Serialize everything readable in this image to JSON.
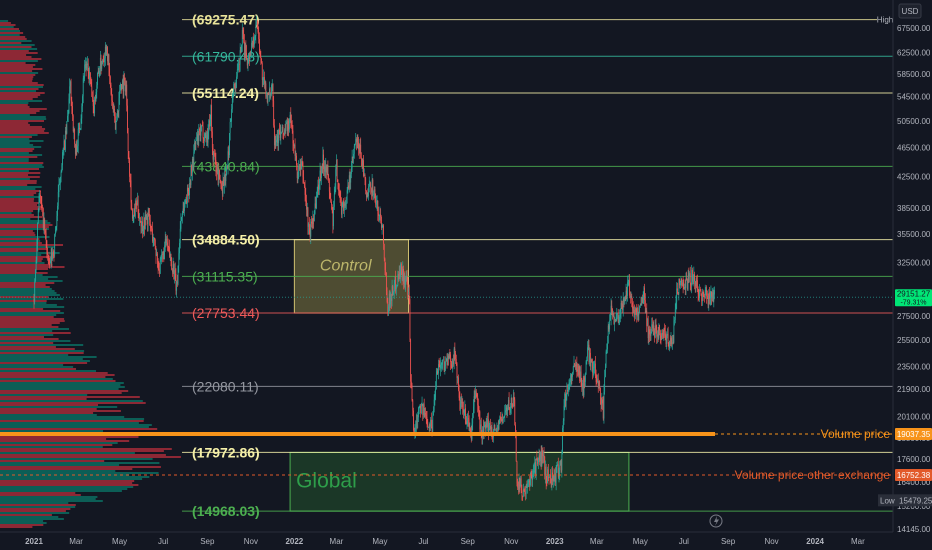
{
  "chart_data": {
    "type": "candlestick",
    "currency": "USD",
    "y_scale": "log",
    "ylim": [
      14200,
      70500
    ],
    "xlim": [
      "2021-01-01",
      "2024-04-01"
    ],
    "y_ticks": [
      "67500.00",
      "62500.00",
      "58500.00",
      "54500.00",
      "50500.00",
      "46500.00",
      "42500.00",
      "38500.00",
      "35500.00",
      "32500.00",
      "29500.00",
      "27500.00",
      "25500.00",
      "23500.00",
      "21900.00",
      "20100.00",
      "18800.00",
      "17600.00",
      "16400.00",
      "15200.00",
      "14145.00"
    ],
    "x_ticks": [
      {
        "date": "2021-01-01",
        "label": "2021",
        "bold": true
      },
      {
        "date": "2021-03-01",
        "label": "Mar"
      },
      {
        "date": "2021-05-01",
        "label": "May"
      },
      {
        "date": "2021-07-01",
        "label": "Jul"
      },
      {
        "date": "2021-09-01",
        "label": "Sep"
      },
      {
        "date": "2021-11-01",
        "label": "Nov"
      },
      {
        "date": "2022-01-01",
        "label": "2022",
        "bold": true
      },
      {
        "date": "2022-03-01",
        "label": "Mar"
      },
      {
        "date": "2022-05-01",
        "label": "May"
      },
      {
        "date": "2022-07-01",
        "label": "Jul"
      },
      {
        "date": "2022-09-01",
        "label": "Sep"
      },
      {
        "date": "2022-11-01",
        "label": "Nov"
      },
      {
        "date": "2023-01-01",
        "label": "2023",
        "bold": true
      },
      {
        "date": "2023-03-01",
        "label": "Mar"
      },
      {
        "date": "2023-05-01",
        "label": "May"
      },
      {
        "date": "2023-07-01",
        "label": "Jul"
      },
      {
        "date": "2023-09-01",
        "label": "Sep"
      },
      {
        "date": "2023-11-01",
        "label": "Nov"
      },
      {
        "date": "2024-01-01",
        "label": "2024",
        "bold": true
      },
      {
        "date": "2024-03-01",
        "label": "Mar"
      }
    ],
    "levels": [
      {
        "value": 69275.47,
        "label": "(69275.47)",
        "color": "#e8e39a",
        "bold": true
      },
      {
        "value": 61790.43,
        "label": "(61790.43)",
        "color": "#35b89c",
        "bold": false
      },
      {
        "value": 55114.24,
        "label": "(55114.24)",
        "color": "#f5f0a8",
        "bold": true
      },
      {
        "value": 43840.84,
        "label": "(43840.84)",
        "color": "#4caf50",
        "bold": false
      },
      {
        "value": 34884.5,
        "label": "(34884.50)",
        "color": "#f5f0a8",
        "bold": true
      },
      {
        "value": 31115.35,
        "label": "(31115.35)",
        "color": "#4caf50",
        "bold": false
      },
      {
        "value": 27753.44,
        "label": "(27753.44)",
        "color": "#f05a5a",
        "bold": false
      },
      {
        "value": 22080.11,
        "label": "(22080.11)",
        "color": "#9598a1",
        "bold": false
      },
      {
        "value": 17972.86,
        "label": "(17972.86)",
        "color": "#f5f0a8",
        "bold": true
      },
      {
        "value": 14968.03,
        "label": "(14968.03)",
        "color": "#4caf50",
        "bold": true
      }
    ],
    "zones": [
      {
        "label": "Control",
        "from": "2022-01-01",
        "to": "2022-06-10",
        "low": 27753.44,
        "high": 34884.5,
        "fill": "rgba(214,200,90,0.30)",
        "stroke": "#cfc070",
        "text_color": "#bdb76b"
      },
      {
        "label": "Global",
        "from": "2021-12-26",
        "to": "2023-04-15",
        "low": 14968.03,
        "high": 17972.86,
        "fill": "rgba(46,125,50,0.32)",
        "stroke": "#4caf50",
        "text_color": "#2e9e4a"
      }
    ],
    "high_marker": {
      "label": "High",
      "value": 69275.47
    },
    "low_marker": {
      "label": "Low",
      "value": 15479.25
    },
    "current_price": {
      "value": "29151.27",
      "change": "-79.31%",
      "value_num": 29151.27
    },
    "volume_lines": [
      {
        "label": "Volume price",
        "value": "19037.35",
        "value_num": 19037.35,
        "color": "#f7931a"
      },
      {
        "label": "Volume price other exchange",
        "value": "16752.38",
        "value_num": 16752.38,
        "color": "#e25a2a"
      }
    ],
    "price_path": [
      [
        "2021-01-01",
        29000
      ],
      [
        "2021-01-08",
        40500
      ],
      [
        "2021-01-15",
        36500
      ],
      [
        "2021-01-22",
        32000
      ],
      [
        "2021-01-29",
        34000
      ],
      [
        "2021-02-08",
        44000
      ],
      [
        "2021-02-15",
        48500
      ],
      [
        "2021-02-21",
        56500
      ],
      [
        "2021-02-28",
        45500
      ],
      [
        "2021-03-07",
        50500
      ],
      [
        "2021-03-13",
        60500
      ],
      [
        "2021-03-20",
        58000
      ],
      [
        "2021-03-25",
        52000
      ],
      [
        "2021-04-01",
        58800
      ],
      [
        "2021-04-13",
        64000
      ],
      [
        "2021-04-18",
        56000
      ],
      [
        "2021-04-25",
        49500
      ],
      [
        "2021-05-03",
        57000
      ],
      [
        "2021-05-10",
        56500
      ],
      [
        "2021-05-12",
        49000
      ],
      [
        "2021-05-19",
        37000
      ],
      [
        "2021-05-25",
        39000
      ],
      [
        "2021-06-01",
        36500
      ],
      [
        "2021-06-10",
        37500
      ],
      [
        "2021-06-20",
        34000
      ],
      [
        "2021-06-26",
        31800
      ],
      [
        "2021-07-05",
        34500
      ],
      [
        "2021-07-15",
        32000
      ],
      [
        "2021-07-20",
        29800
      ],
      [
        "2021-07-26",
        37500
      ],
      [
        "2021-08-05",
        40500
      ],
      [
        "2021-08-15",
        47000
      ],
      [
        "2021-08-24",
        49000
      ],
      [
        "2021-09-01",
        48000
      ],
      [
        "2021-09-06",
        52500
      ],
      [
        "2021-09-08",
        46000
      ],
      [
        "2021-09-21",
        41000
      ],
      [
        "2021-09-29",
        43500
      ],
      [
        "2021-10-06",
        55000
      ],
      [
        "2021-10-14",
        58500
      ],
      [
        "2021-10-20",
        65500
      ],
      [
        "2021-10-28",
        61000
      ],
      [
        "2021-11-08",
        67500
      ],
      [
        "2021-11-10",
        68600
      ],
      [
        "2021-11-18",
        57000
      ],
      [
        "2021-11-26",
        54000
      ],
      [
        "2021-12-01",
        57200
      ],
      [
        "2021-12-04",
        48000
      ],
      [
        "2021-12-15",
        48500
      ],
      [
        "2021-12-27",
        50500
      ],
      [
        "2022-01-05",
        43000
      ],
      [
        "2022-01-12",
        43700
      ],
      [
        "2022-01-22",
        35500
      ],
      [
        "2022-01-28",
        37800
      ],
      [
        "2022-02-09",
        44500
      ],
      [
        "2022-02-15",
        44000
      ],
      [
        "2022-02-24",
        37000
      ],
      [
        "2022-03-01",
        44000
      ],
      [
        "2022-03-07",
        38500
      ],
      [
        "2022-03-15",
        39500
      ],
      [
        "2022-03-28",
        47300
      ],
      [
        "2022-04-05",
        45500
      ],
      [
        "2022-04-12",
        39800
      ],
      [
        "2022-04-20",
        41500
      ],
      [
        "2022-04-27",
        38500
      ],
      [
        "2022-05-05",
        36500
      ],
      [
        "2022-05-09",
        31000
      ],
      [
        "2022-05-12",
        28500
      ],
      [
        "2022-05-20",
        30000
      ],
      [
        "2022-05-30",
        31800
      ],
      [
        "2022-06-07",
        30500
      ],
      [
        "2022-06-11",
        28500
      ],
      [
        "2022-06-13",
        22500
      ],
      [
        "2022-06-18",
        19000
      ],
      [
        "2022-06-25",
        21000
      ],
      [
        "2022-07-05",
        20000
      ],
      [
        "2022-07-13",
        19500
      ],
      [
        "2022-07-20",
        23500
      ],
      [
        "2022-07-30",
        23800
      ],
      [
        "2022-08-10",
        24000
      ],
      [
        "2022-08-15",
        24400
      ],
      [
        "2022-08-20",
        21000
      ],
      [
        "2022-08-30",
        20000
      ],
      [
        "2022-09-06",
        19000
      ],
      [
        "2022-09-12",
        22000
      ],
      [
        "2022-09-20",
        19000
      ],
      [
        "2022-09-30",
        19500
      ],
      [
        "2022-10-10",
        19200
      ],
      [
        "2022-10-25",
        20500
      ],
      [
        "2022-11-05",
        21200
      ],
      [
        "2022-11-09",
        16500
      ],
      [
        "2022-11-21",
        15700
      ],
      [
        "2022-12-01",
        17000
      ],
      [
        "2022-12-15",
        17800
      ],
      [
        "2022-12-20",
        16700
      ],
      [
        "2023-01-01",
        16600
      ],
      [
        "2023-01-10",
        17400
      ],
      [
        "2023-01-14",
        20900
      ],
      [
        "2023-01-25",
        23000
      ],
      [
        "2023-02-02",
        23700
      ],
      [
        "2023-02-10",
        21800
      ],
      [
        "2023-02-16",
        24700
      ],
      [
        "2023-02-25",
        23300
      ],
      [
        "2023-03-03",
        22500
      ],
      [
        "2023-03-10",
        20300
      ],
      [
        "2023-03-14",
        24300
      ],
      [
        "2023-03-20",
        28000
      ],
      [
        "2023-03-28",
        27200
      ],
      [
        "2023-04-05",
        28200
      ],
      [
        "2023-04-14",
        30400
      ],
      [
        "2023-04-20",
        28500
      ],
      [
        "2023-04-25",
        27500
      ],
      [
        "2023-05-06",
        29500
      ],
      [
        "2023-05-12",
        26200
      ],
      [
        "2023-05-25",
        26400
      ],
      [
        "2023-06-05",
        25800
      ],
      [
        "2023-06-15",
        25100
      ],
      [
        "2023-06-21",
        30000
      ],
      [
        "2023-06-30",
        30700
      ],
      [
        "2023-07-06",
        30500
      ],
      [
        "2023-07-13",
        31200
      ],
      [
        "2023-07-20",
        29800
      ],
      [
        "2023-07-28",
        29300
      ],
      [
        "2023-08-05",
        29100
      ],
      [
        "2023-08-09",
        29800
      ],
      [
        "2023-08-13",
        29151
      ]
    ]
  }
}
